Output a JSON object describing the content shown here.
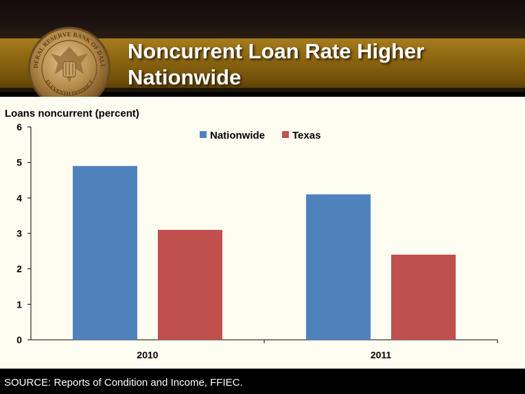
{
  "slide": {
    "title_line1": "Noncurrent Loan Rate Higher",
    "title_line2": "Nationwide",
    "source": "SOURCE: Reports of Condition and Income, FFIEC.",
    "seal_text_top": "FEDERAL RESERVE BANK OF DALLAS",
    "seal_text_bottom": "ELEVENTH DISTRICT"
  },
  "colors": {
    "nationwide": "#4f81bd",
    "texas": "#c0504d",
    "gold": "#a67c1c"
  },
  "chart_data": {
    "type": "bar",
    "ylabel": "Loans noncurrent (percent)",
    "xlabel": "",
    "categories": [
      "2010",
      "2011"
    ],
    "series": [
      {
        "name": "Nationwide",
        "values": [
          4.9,
          4.1
        ]
      },
      {
        "name": "Texas",
        "values": [
          3.1,
          2.4
        ]
      }
    ],
    "ylim": [
      0,
      6
    ],
    "yticks": [
      "0",
      "1",
      "2",
      "3",
      "4",
      "5",
      "6"
    ],
    "legend": "top-center",
    "grid": false
  }
}
